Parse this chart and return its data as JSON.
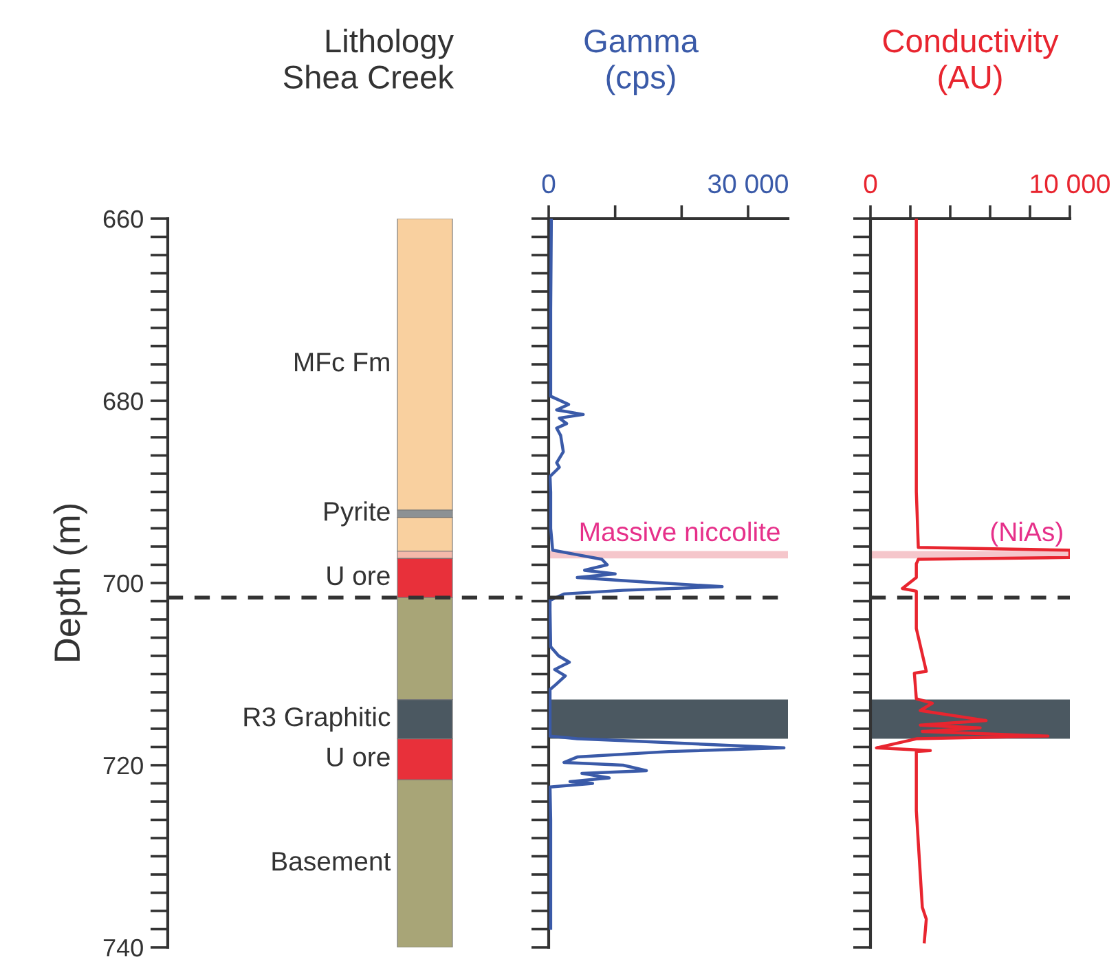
{
  "chart_data": [
    {
      "type": "bar",
      "title": "Lithology\nShea Creek",
      "ylabel": "Depth (m)",
      "categories": [
        null
      ],
      "tick_labels": "y",
      "ylim": [
        740,
        660
      ],
      "yticks": [
        660,
        {
          "value": 662,
          "label": null
        },
        {
          "value": 664,
          "label": null
        },
        {
          "value": 666,
          "label": null
        },
        {
          "value": 668,
          "label": null
        },
        {
          "value": 670,
          "label": null
        },
        {
          "value": 672,
          "label": null
        },
        {
          "value": 674,
          "label": null
        },
        {
          "value": 676,
          "label": null
        },
        {
          "value": 678,
          "label": null
        },
        680,
        {
          "value": 682,
          "label": null
        },
        {
          "value": 684,
          "label": null
        },
        {
          "value": 686,
          "label": null
        },
        {
          "value": 688,
          "label": null
        },
        {
          "value": 690,
          "label": null
        },
        {
          "value": 692,
          "label": null
        },
        {
          "value": 694,
          "label": null
        },
        {
          "value": 696,
          "label": null
        },
        {
          "value": 698,
          "label": null
        },
        700,
        {
          "value": 702,
          "label": null
        },
        {
          "value": 704,
          "label": null
        },
        {
          "value": 706,
          "label": null
        },
        {
          "value": 708,
          "label": null
        },
        {
          "value": 710,
          "label": null
        },
        {
          "value": 712,
          "label": null
        },
        {
          "value": 714,
          "label": null
        },
        {
          "value": 716,
          "label": null
        },
        {
          "value": 718,
          "label": null
        },
        720,
        {
          "value": 722,
          "label": null
        },
        {
          "value": 724,
          "label": null
        },
        {
          "value": 726,
          "label": null
        },
        {
          "value": 728,
          "label": null
        },
        {
          "value": 730,
          "label": null
        },
        {
          "value": 732,
          "label": null
        },
        {
          "value": 734,
          "label": null
        },
        {
          "value": 736,
          "label": null
        },
        {
          "value": 738,
          "label": null
        },
        740
      ],
      "series": [
        {
          "name": "MFc Fm",
          "color": "#f9d09f",
          "base": [
            660
          ],
          "values": [
            32.0
          ]
        },
        {
          "name": "Pyrite",
          "color": "#8c9194",
          "base": [
            692.0
          ],
          "values": [
            0.8
          ]
        },
        {
          "color": "#f9d09f",
          "base": [
            692.8
          ],
          "values": [
            3.7
          ]
        },
        {
          "color": "#f5b9aa",
          "base": [
            696.5
          ],
          "values": [
            0.8
          ]
        },
        {
          "name": "U ore",
          "color": "#e8303a",
          "base": [
            697.3
          ],
          "values": [
            4.3
          ]
        },
        {
          "color": "#a8a577",
          "base": [
            701.6
          ],
          "values": [
            11.2
          ]
        },
        {
          "name": "R3 Graphitic",
          "color": "#4b5861",
          "base": [
            712.8
          ],
          "values": [
            4.3
          ]
        },
        {
          "name": "U ore",
          "color": "#e8303a",
          "base": [
            717.1
          ],
          "values": [
            4.5
          ]
        },
        {
          "name": "Basement",
          "color": "#a8a577",
          "base": [
            721.6
          ],
          "values": [
            18.4
          ]
        }
      ],
      "ref_lines": [
        {
          "axis": "y",
          "value": 701.6,
          "color": "#333333",
          "line_style": "dashed"
        }
      ]
    },
    {
      "type": "line",
      "orientation": "horizontal",
      "title": "Gamma\n(cps)",
      "tick_labels": "x",
      "xlim": [
        0,
        36000
      ],
      "xticks": [
        0,
        {
          "value": 10000,
          "label": null
        },
        {
          "value": 20000,
          "label": null
        },
        {
          "value": 30000,
          "label": "30 000"
        }
      ],
      "ylim": [
        740,
        660
      ],
      "yticks": [
        {
          "value": 660,
          "label": null
        },
        {
          "value": 662,
          "label": null
        },
        {
          "value": 664,
          "label": null
        },
        {
          "value": 666,
          "label": null
        },
        {
          "value": 668,
          "label": null
        },
        {
          "value": 670,
          "label": null
        },
        {
          "value": 672,
          "label": null
        },
        {
          "value": 674,
          "label": null
        },
        {
          "value": 676,
          "label": null
        },
        {
          "value": 678,
          "label": null
        },
        {
          "value": 680,
          "label": null
        },
        {
          "value": 682,
          "label": null
        },
        {
          "value": 684,
          "label": null
        },
        {
          "value": 686,
          "label": null
        },
        {
          "value": 688,
          "label": null
        },
        {
          "value": 690,
          "label": null
        },
        {
          "value": 692,
          "label": null
        },
        {
          "value": 694,
          "label": null
        },
        {
          "value": 696,
          "label": null
        },
        {
          "value": 698,
          "label": null
        },
        {
          "value": 700,
          "label": null
        },
        {
          "value": 702,
          "label": null
        },
        {
          "value": 704,
          "label": null
        },
        {
          "value": 706,
          "label": null
        },
        {
          "value": 708,
          "label": null
        },
        {
          "value": 710,
          "label": null
        },
        {
          "value": 712,
          "label": null
        },
        {
          "value": 714,
          "label": null
        },
        {
          "value": 716,
          "label": null
        },
        {
          "value": 718,
          "label": null
        },
        {
          "value": 720,
          "label": null
        },
        {
          "value": 722,
          "label": null
        },
        {
          "value": 724,
          "label": null
        },
        {
          "value": 726,
          "label": null
        },
        {
          "value": 728,
          "label": null
        },
        {
          "value": 730,
          "label": null
        },
        {
          "value": 732,
          "label": null
        },
        {
          "value": 734,
          "label": null
        },
        {
          "value": 736,
          "label": null
        },
        {
          "value": 738,
          "label": null
        },
        {
          "value": 740,
          "label": null
        }
      ],
      "series": [
        {
          "color": "#3a5aa8",
          "x": [
            660,
            670,
            679.5,
            680.4,
            681.0,
            681.5,
            681.9,
            682.5,
            683.0,
            683.8,
            685.6,
            686.8,
            687.3,
            688.3,
            690,
            694,
            696.4,
            696.9,
            697.4,
            698.0,
            698.6,
            699.0,
            699.4,
            699.9,
            700.4,
            700.8,
            701.2,
            701.9,
            703,
            707.0,
            708.0,
            708.7,
            709.5,
            710.2,
            711.2,
            711.7,
            714,
            716.8,
            717.1,
            717.3,
            718.1,
            718.5,
            719.1,
            719.7,
            720.0,
            720.6,
            720.9,
            721.4,
            721.8,
            722.0,
            722.4,
            726,
            730,
            734,
            737.9
          ],
          "values": [
            400,
            300,
            300,
            3000,
            1200,
            5200,
            1600,
            2700,
            1200,
            1800,
            2200,
            1200,
            1600,
            200,
            300,
            300,
            600,
            4300,
            8000,
            8800,
            5400,
            10000,
            4300,
            14700,
            26100,
            11200,
            2300,
            200,
            200,
            300,
            1500,
            3100,
            900,
            2500,
            1000,
            200,
            200,
            200,
            4300,
            11200,
            35400,
            18100,
            4300,
            2300,
            11200,
            14700,
            5000,
            9100,
            3200,
            6600,
            200,
            300,
            300,
            300,
            300
          ]
        }
      ],
      "bands": [
        {
          "axis": "y",
          "from": 696.5,
          "to": 697.3,
          "color": "#f5c6cb",
          "label": "Massive niccolite"
        },
        {
          "axis": "y",
          "from": 712.8,
          "to": 717.1,
          "color": "#4b5861"
        }
      ],
      "ref_lines": [
        {
          "axis": "y",
          "value": 701.6,
          "color": "#333333",
          "line_style": "dashed"
        }
      ]
    },
    {
      "type": "line",
      "orientation": "horizontal",
      "title": "Conductivity\n(AU)",
      "tick_labels": "x",
      "xlim": [
        0,
        10000
      ],
      "xticks": [
        0,
        {
          "value": 2000,
          "label": null
        },
        {
          "value": 4000,
          "label": null
        },
        {
          "value": 6000,
          "label": null
        },
        {
          "value": 8000,
          "label": null
        },
        {
          "value": 10000,
          "label": "10 000"
        }
      ],
      "ylim": [
        740,
        660
      ],
      "yticks": [
        {
          "value": 660,
          "label": null
        },
        {
          "value": 662,
          "label": null
        },
        {
          "value": 664,
          "label": null
        },
        {
          "value": 666,
          "label": null
        },
        {
          "value": 668,
          "label": null
        },
        {
          "value": 670,
          "label": null
        },
        {
          "value": 672,
          "label": null
        },
        {
          "value": 674,
          "label": null
        },
        {
          "value": 676,
          "label": null
        },
        {
          "value": 678,
          "label": null
        },
        {
          "value": 680,
          "label": null
        },
        {
          "value": 682,
          "label": null
        },
        {
          "value": 684,
          "label": null
        },
        {
          "value": 686,
          "label": null
        },
        {
          "value": 688,
          "label": null
        },
        {
          "value": 690,
          "label": null
        },
        {
          "value": 692,
          "label": null
        },
        {
          "value": 694,
          "label": null
        },
        {
          "value": 696,
          "label": null
        },
        {
          "value": 698,
          "label": null
        },
        {
          "value": 700,
          "label": null
        },
        {
          "value": 702,
          "label": null
        },
        {
          "value": 704,
          "label": null
        },
        {
          "value": 706,
          "label": null
        },
        {
          "value": 708,
          "label": null
        },
        {
          "value": 710,
          "label": null
        },
        {
          "value": 712,
          "label": null
        },
        {
          "value": 714,
          "label": null
        },
        {
          "value": 716,
          "label": null
        },
        {
          "value": 718,
          "label": null
        },
        {
          "value": 720,
          "label": null
        },
        {
          "value": 722,
          "label": null
        },
        {
          "value": 724,
          "label": null
        },
        {
          "value": 726,
          "label": null
        },
        {
          "value": 728,
          "label": null
        },
        {
          "value": 730,
          "label": null
        },
        {
          "value": 732,
          "label": null
        },
        {
          "value": 734,
          "label": null
        },
        {
          "value": 736,
          "label": null
        },
        {
          "value": 738,
          "label": null
        },
        {
          "value": 740,
          "label": null
        }
      ],
      "series": [
        {
          "color": "#e8252f",
          "x": [
            660,
            670,
            680,
            690,
            696.1,
            696.4,
            697.2,
            697.4,
            697.9,
            699.4,
            700.6,
            700.9,
            705,
            709.7,
            709.9,
            712.7,
            713.2,
            714.0,
            715.1,
            715.6,
            715.9,
            716.3,
            716.8,
            717.1,
            718.1,
            718.4,
            718.5,
            725,
            735.6,
            736.9,
            739.4
          ],
          "values": [
            2300,
            2300,
            2300,
            2300,
            2400,
            10000,
            10000,
            2400,
            2300,
            2300,
            1600,
            2300,
            2300,
            2800,
            2200,
            2300,
            3100,
            2500,
            5800,
            2500,
            5500,
            2600,
            8900,
            2300,
            300,
            3000,
            2300,
            2300,
            2600,
            2800,
            2700
          ]
        }
      ],
      "bands": [
        {
          "axis": "y",
          "from": 696.5,
          "to": 697.3,
          "color": "#f5c6cb",
          "label": "(NiAs)"
        },
        {
          "axis": "y",
          "from": 712.8,
          "to": 717.1,
          "color": "#4b5861"
        }
      ],
      "ref_lines": [
        {
          "axis": "y",
          "value": 701.6,
          "color": "#333333",
          "line_style": "dashed"
        }
      ]
    }
  ]
}
